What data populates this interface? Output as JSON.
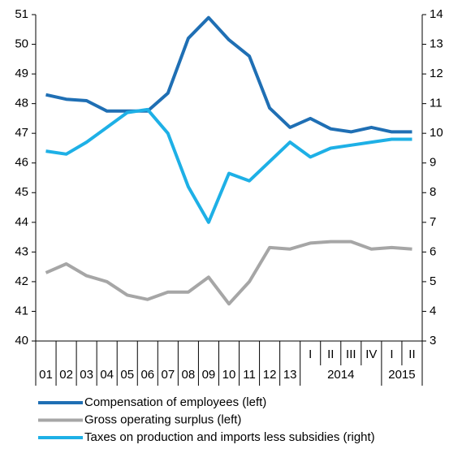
{
  "chart_data": {
    "type": "line",
    "categories": [
      "01",
      "02",
      "03",
      "04",
      "05",
      "06",
      "07",
      "08",
      "09",
      "10",
      "11",
      "12",
      "13",
      "I",
      "II",
      "III",
      "IV",
      "I",
      "II"
    ],
    "groups": [
      {
        "label": "2014",
        "span": [
          13,
          16
        ]
      },
      {
        "label": "2015",
        "span": [
          17,
          18
        ]
      }
    ],
    "ylim": [
      40,
      51
    ],
    "yticks": [
      40,
      41,
      42,
      43,
      44,
      45,
      46,
      47,
      48,
      49,
      50,
      51
    ],
    "y2lim": [
      3,
      14
    ],
    "y2ticks": [
      3,
      4,
      5,
      6,
      7,
      8,
      9,
      10,
      11,
      12,
      13,
      14
    ],
    "grid": false,
    "legend": "bottom",
    "series": [
      {
        "name": "Compensation of employees (left)",
        "color": "#1f6fb4",
        "values": [
          48.3,
          48.15,
          48.1,
          47.75,
          47.75,
          47.75,
          48.35,
          50.2,
          50.9,
          50.15,
          49.6,
          47.85,
          47.2,
          47.5,
          47.15,
          47.05,
          47.2,
          47.05,
          47.05
        ]
      },
      {
        "name": "Gross operating surplus (left)",
        "color": "#a6a6a6",
        "values": [
          42.3,
          42.6,
          42.2,
          42.0,
          41.55,
          41.4,
          41.65,
          41.65,
          42.15,
          41.25,
          42.0,
          43.15,
          43.1,
          43.3,
          43.35,
          43.35,
          43.1,
          43.15,
          43.1
        ]
      },
      {
        "name": "Taxes on production and imports less subsidies (right)",
        "color": "#1eb0e6",
        "axis": "y2",
        "values": [
          9.4,
          9.3,
          9.7,
          10.2,
          10.7,
          10.8,
          10.0,
          8.2,
          7.0,
          8.65,
          8.4,
          9.05,
          9.7,
          9.2,
          9.5,
          9.6,
          9.7,
          9.8,
          9.8
        ]
      }
    ]
  }
}
